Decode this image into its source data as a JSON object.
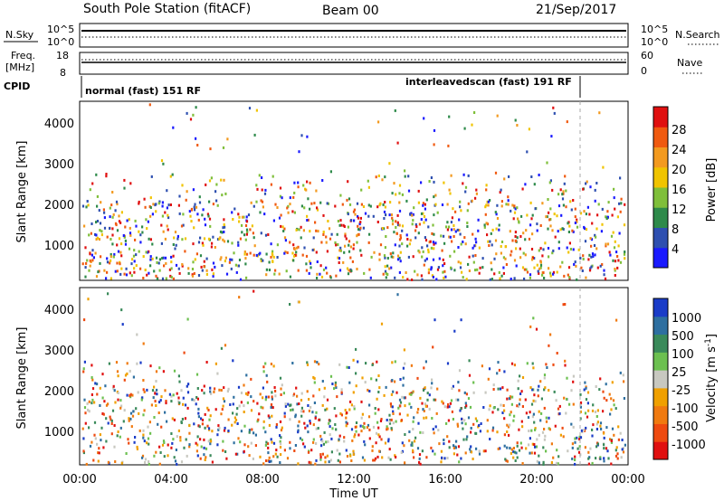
{
  "header": {
    "title": "South Pole Station (fitACF)",
    "beam": "Beam 00",
    "date": "21/Sep/2017"
  },
  "top_panels": {
    "nsky_label": "N.Sky",
    "nsearch_label": "N.Search",
    "noise_ticks": [
      "10^5",
      "10^0"
    ],
    "freq_label_1": "Freq.",
    "freq_label_2": "[MHz]",
    "freq_ticks": [
      "18",
      "8"
    ],
    "nave_label": "Nave",
    "nave_ticks": [
      "60",
      "0"
    ],
    "cpid_label": "CPID",
    "cpid_1": "normal (fast) 151 RF",
    "cpid_2": "interleavedscan (fast) 191 RF"
  },
  "chart_data": [
    {
      "type": "heatmap",
      "name": "power",
      "ylabel": "Slant Range [km]",
      "ylim": [
        180,
        4500
      ],
      "yticks": [
        "1000",
        "2000",
        "3000",
        "4000"
      ],
      "xlim": [
        0,
        24
      ],
      "colorbar_label": "Power [dB]",
      "colorbar_ticks": [
        "4",
        "8",
        "12",
        "16",
        "20",
        "24",
        "28"
      ],
      "colors": [
        "#1a1aff",
        "#2e4fb0",
        "#2e8a4a",
        "#7fbf3a",
        "#f0c400",
        "#f39a1f",
        "#f05a10",
        "#e01010"
      ]
    },
    {
      "type": "heatmap",
      "name": "velocity",
      "ylabel": "Slant Range [km]",
      "ylim": [
        180,
        4500
      ],
      "yticks": [
        "1000",
        "2000",
        "3000",
        "4000"
      ],
      "xlim": [
        0,
        24
      ],
      "xticks": [
        "00:00",
        "04:00",
        "08:00",
        "12:00",
        "16:00",
        "20:00",
        "00:00"
      ],
      "xlabel": "Time UT",
      "colorbar_label_1": "Velocity",
      "colorbar_label_2": "[m s",
      "colorbar_label_sup": "-1",
      "colorbar_label_3": "]",
      "colorbar_ticks": [
        "1000",
        "500",
        "100",
        "25",
        "-25",
        "-100",
        "-500",
        "-1000"
      ],
      "colors": [
        "#1a3cc8",
        "#2e6fa0",
        "#3a8a5a",
        "#6cc050",
        "#c8c8c0",
        "#f0a000",
        "#f07a10",
        "#ee4a10",
        "#e01010"
      ]
    }
  ]
}
